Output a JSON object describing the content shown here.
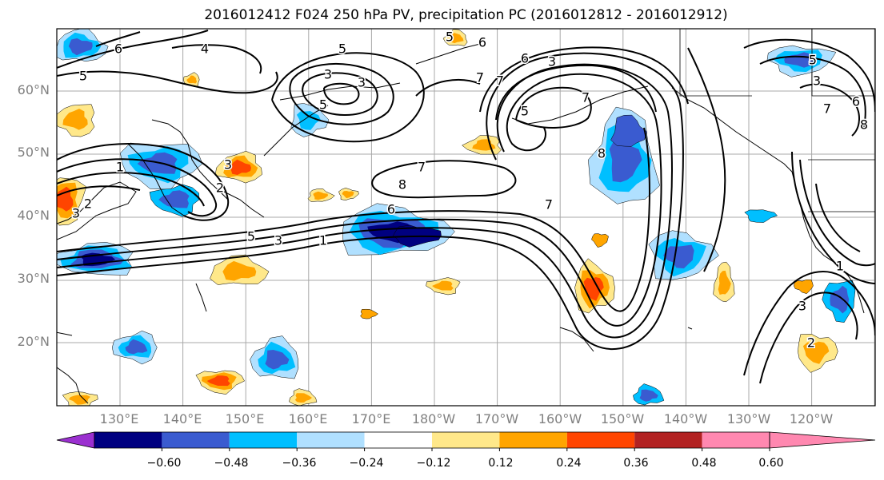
{
  "title": "2016012412 F024 250 hPa PV, precipitation PC (2016012812 - 2016012912)",
  "lat_labels": [
    "60°N",
    "50°N",
    "40°N",
    "30°N",
    "20°N"
  ],
  "lon_labels": [
    "130°E",
    "140°E",
    "150°E",
    "160°E",
    "170°E",
    "180°W",
    "170°W",
    "160°W",
    "150°W",
    "140°W",
    "130°W",
    "120°W"
  ],
  "contour_labels": [
    "6",
    "4",
    "5",
    "5",
    "3",
    "3",
    "5",
    "6",
    "3",
    "7",
    "7",
    "6",
    "5",
    "7",
    "6",
    "5",
    "3",
    "1",
    "7",
    "8",
    "6",
    "5",
    "3",
    "1",
    "7",
    "8",
    "1",
    "2",
    "3",
    "2",
    "3",
    "5",
    "8",
    "7",
    "3",
    "2"
  ],
  "colorbar": {
    "tick_labels": [
      "−0.60",
      "−0.48",
      "−0.36",
      "−0.24",
      "−0.12",
      "0.12",
      "0.24",
      "0.36",
      "0.48",
      "0.60"
    ],
    "colors": [
      "#9b30d0",
      "#000080",
      "#3a5bd0",
      "#00bfff",
      "#b0e0ff",
      "#ffffff",
      "#ffe88a",
      "#ffa500",
      "#ff4500",
      "#b22222",
      "#ff88b0"
    ]
  }
}
